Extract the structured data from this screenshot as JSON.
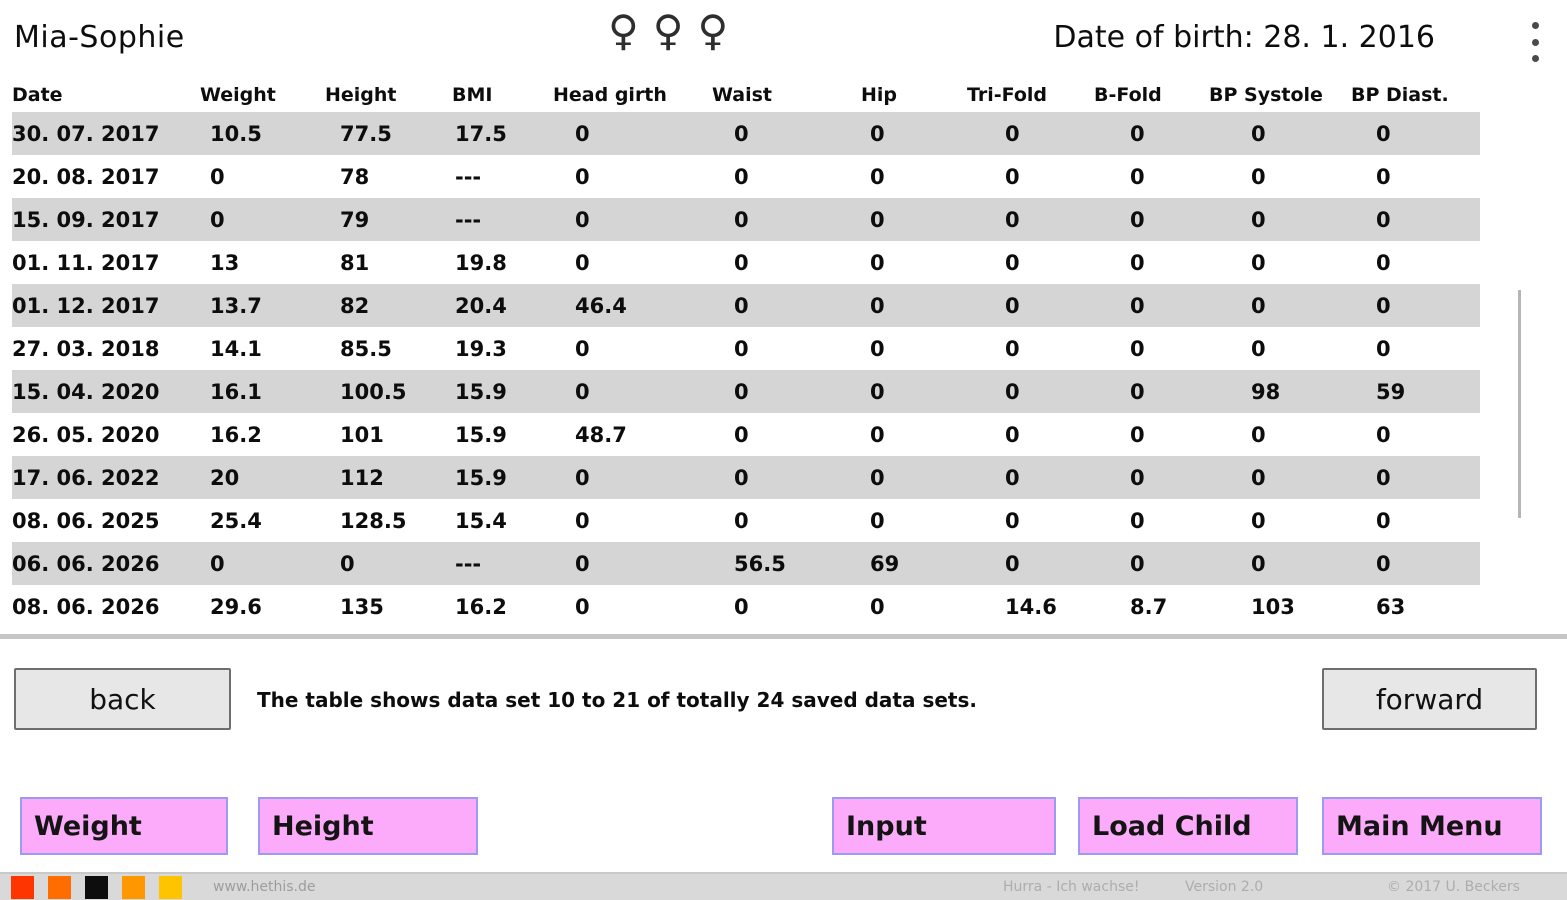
{
  "header": {
    "child_name": "Mia-Sophie",
    "date_of_birth": "Date of birth: 28. 1. 2016",
    "gender_icons": [
      "♀",
      "♀",
      "♀"
    ]
  },
  "table": {
    "columns": [
      "Date",
      "Weight",
      "Height",
      "BMI",
      "Head girth",
      "Waist",
      "Hip",
      "Tri-Fold",
      "B-Fold",
      "BP Systole",
      "BP Diast."
    ],
    "rows": [
      [
        "30. 07. 2017",
        "10.5",
        "77.5",
        "17.5",
        "0",
        "0",
        "0",
        "0",
        "0",
        "0",
        "0"
      ],
      [
        "20. 08. 2017",
        "0",
        "78",
        "---",
        "0",
        "0",
        "0",
        "0",
        "0",
        "0",
        "0"
      ],
      [
        "15. 09. 2017",
        "0",
        "79",
        "---",
        "0",
        "0",
        "0",
        "0",
        "0",
        "0",
        "0"
      ],
      [
        "01. 11. 2017",
        "13",
        "81",
        "19.8",
        "0",
        "0",
        "0",
        "0",
        "0",
        "0",
        "0"
      ],
      [
        "01. 12. 2017",
        "13.7",
        "82",
        "20.4",
        "46.4",
        "0",
        "0",
        "0",
        "0",
        "0",
        "0"
      ],
      [
        "27. 03. 2018",
        "14.1",
        "85.5",
        "19.3",
        "0",
        "0",
        "0",
        "0",
        "0",
        "0",
        "0"
      ],
      [
        "15. 04. 2020",
        "16.1",
        "100.5",
        "15.9",
        "0",
        "0",
        "0",
        "0",
        "0",
        "98",
        "59"
      ],
      [
        "26. 05. 2020",
        "16.2",
        "101",
        "15.9",
        "48.7",
        "0",
        "0",
        "0",
        "0",
        "0",
        "0"
      ],
      [
        "17. 06. 2022",
        "20",
        "112",
        "15.9",
        "0",
        "0",
        "0",
        "0",
        "0",
        "0",
        "0"
      ],
      [
        "08. 06. 2025",
        "25.4",
        "128.5",
        "15.4",
        "0",
        "0",
        "0",
        "0",
        "0",
        "0",
        "0"
      ],
      [
        "06. 06. 2026",
        "0",
        "0",
        "---",
        "0",
        "56.5",
        "69",
        "0",
        "0",
        "0",
        "0"
      ],
      [
        "08. 06. 2026",
        "29.6",
        "135",
        "16.2",
        "0",
        "0",
        "0",
        "14.6",
        "8.7",
        "103",
        "63"
      ]
    ]
  },
  "pagination": {
    "back_label": "back",
    "status_text": "The table shows data set 10 to 21 of totally 24 saved data sets.",
    "forward_label": "forward"
  },
  "action_buttons": [
    {
      "id": "weight",
      "label": "Weight"
    },
    {
      "id": "height",
      "label": "Height"
    },
    {
      "id": "input",
      "label": "Input"
    },
    {
      "id": "load-child",
      "label": "Load Child"
    },
    {
      "id": "main-menu",
      "label": "Main Menu"
    }
  ],
  "footer": {
    "palette": [
      "#ff3500",
      "#ff6d00",
      "#0d0d0d",
      "#ff9800",
      "#ffc400"
    ],
    "website": "www.hethis.de",
    "app_name": "Hurra - Ich wachse!",
    "version": "Version 2.0",
    "copyright": "© 2017 U. Beckers"
  },
  "colors": {
    "row_alt": "#d5d5d5",
    "pink_button_bg": "#fbabf9",
    "pink_button_border": "#9b9bf2",
    "gray_button_bg": "#e7e7e7"
  }
}
